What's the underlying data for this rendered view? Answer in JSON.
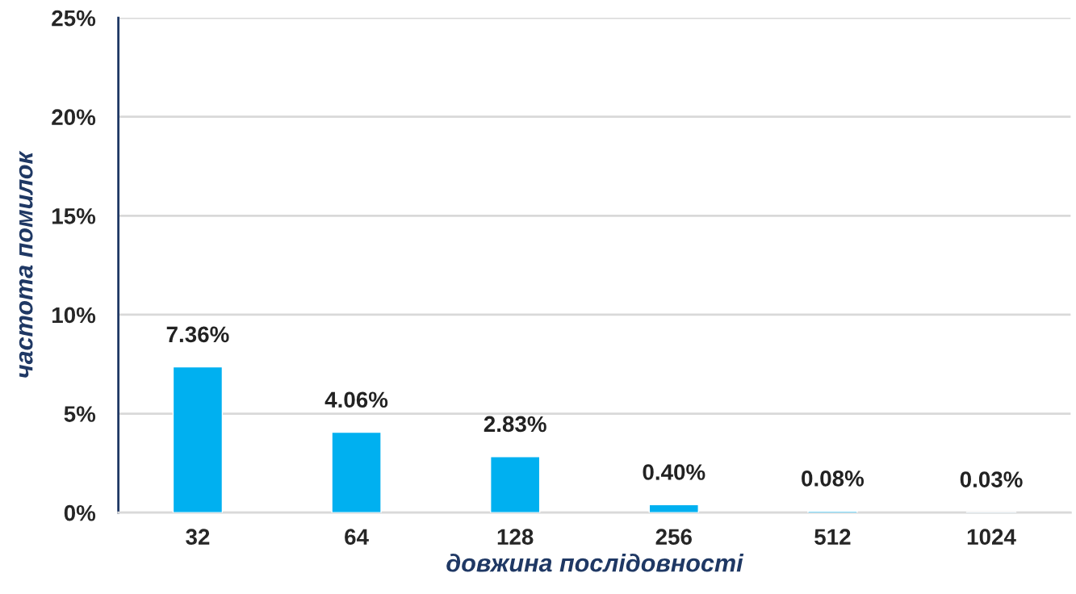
{
  "chart_data": {
    "type": "bar",
    "xlabel": "довжина послідовності",
    "ylabel": "частота помилок",
    "categories": [
      "32",
      "64",
      "128",
      "256",
      "512",
      "1024"
    ],
    "values": [
      7.36,
      4.06,
      2.83,
      0.4,
      0.08,
      0.03
    ],
    "value_labels": [
      "7.36%",
      "4.06%",
      "2.83%",
      "0.40%",
      "0.08%",
      "0.03%"
    ],
    "color": "#00b0f0",
    "ylim": [
      0,
      25
    ],
    "yticks": [
      {
        "value": 0,
        "label": "0%"
      },
      {
        "value": 5,
        "label": "5%"
      },
      {
        "value": 10,
        "label": "10%"
      },
      {
        "value": 15,
        "label": "15%"
      },
      {
        "value": 20,
        "label": "20%"
      },
      {
        "value": 25,
        "label": "25%"
      }
    ],
    "grid": "y"
  }
}
